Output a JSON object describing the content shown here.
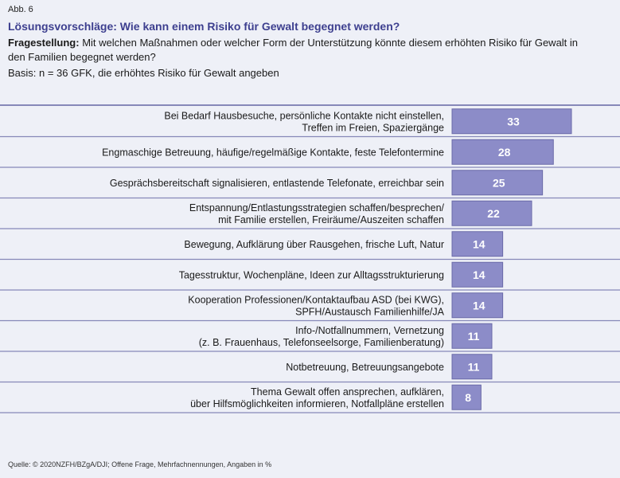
{
  "header": {
    "figure_label": "Abb. 6",
    "title": "Lösungsvorschläge: Wie kann einem Risiko für Gewalt begegnet werden?",
    "question_label": "Fragestellung:",
    "question_text": " Mit welchen Maßnahmen oder welcher Form der Unterstützung könnte diesem erhöhten Risiko für Gewalt in den Familien begegnet werden?",
    "basis": "Basis: n = 36 GFK, die erhöhtes Risiko für Gewalt angeben"
  },
  "source": "Quelle: © 2020NZFH/BZgA/DJI; Offene Frage, Mehrfachnennungen, Angaben in %",
  "colors": {
    "bar": "#8c8cc8",
    "bar_border": "#6a6aa8",
    "value_text": "#ffffff",
    "rule": "#8688b8",
    "title": "#3d3f8f"
  },
  "chart_data": {
    "type": "bar",
    "orientation": "horizontal",
    "categories": [
      "Bei Bedarf Hausbesuche, persönliche Kontakte nicht einstellen,\nTreffen im Freien, Spaziergänge",
      "Engmaschige Betreuung, häufige/regelmäßige Kontakte, feste Telefontermine",
      "Gesprächsbereitschaft signalisieren, entlastende Telefonate, erreichbar sein",
      "Entspannung/Entlastungsstrategien schaffen/besprechen/\nmit Familie erstellen, Freiräume/Auszeiten schaffen",
      "Bewegung, Aufklärung über Rausgehen, frische Luft, Natur",
      "Tagesstruktur, Wochenpläne, Ideen zur Alltagsstrukturierung",
      "Kooperation Professionen/Kontaktaufbau ASD (bei KWG),\nSPFH/Austausch Familienhilfe/JA",
      "Info-/Notfallnummern, Vernetzung\n(z. B. Frauenhaus, Telefonseelsorge, Familienberatung)",
      "Notbetreuung, Betreuungsangebote",
      "Thema Gewalt offen ansprechen, aufklären,\nüber Hilfsmöglichkeiten informieren, Notfallpläne erstellen"
    ],
    "values": [
      33,
      28,
      25,
      22,
      14,
      14,
      14,
      11,
      11,
      8
    ],
    "unit": "%",
    "xlim": [
      0,
      40
    ],
    "grid": false,
    "legend": "none"
  }
}
